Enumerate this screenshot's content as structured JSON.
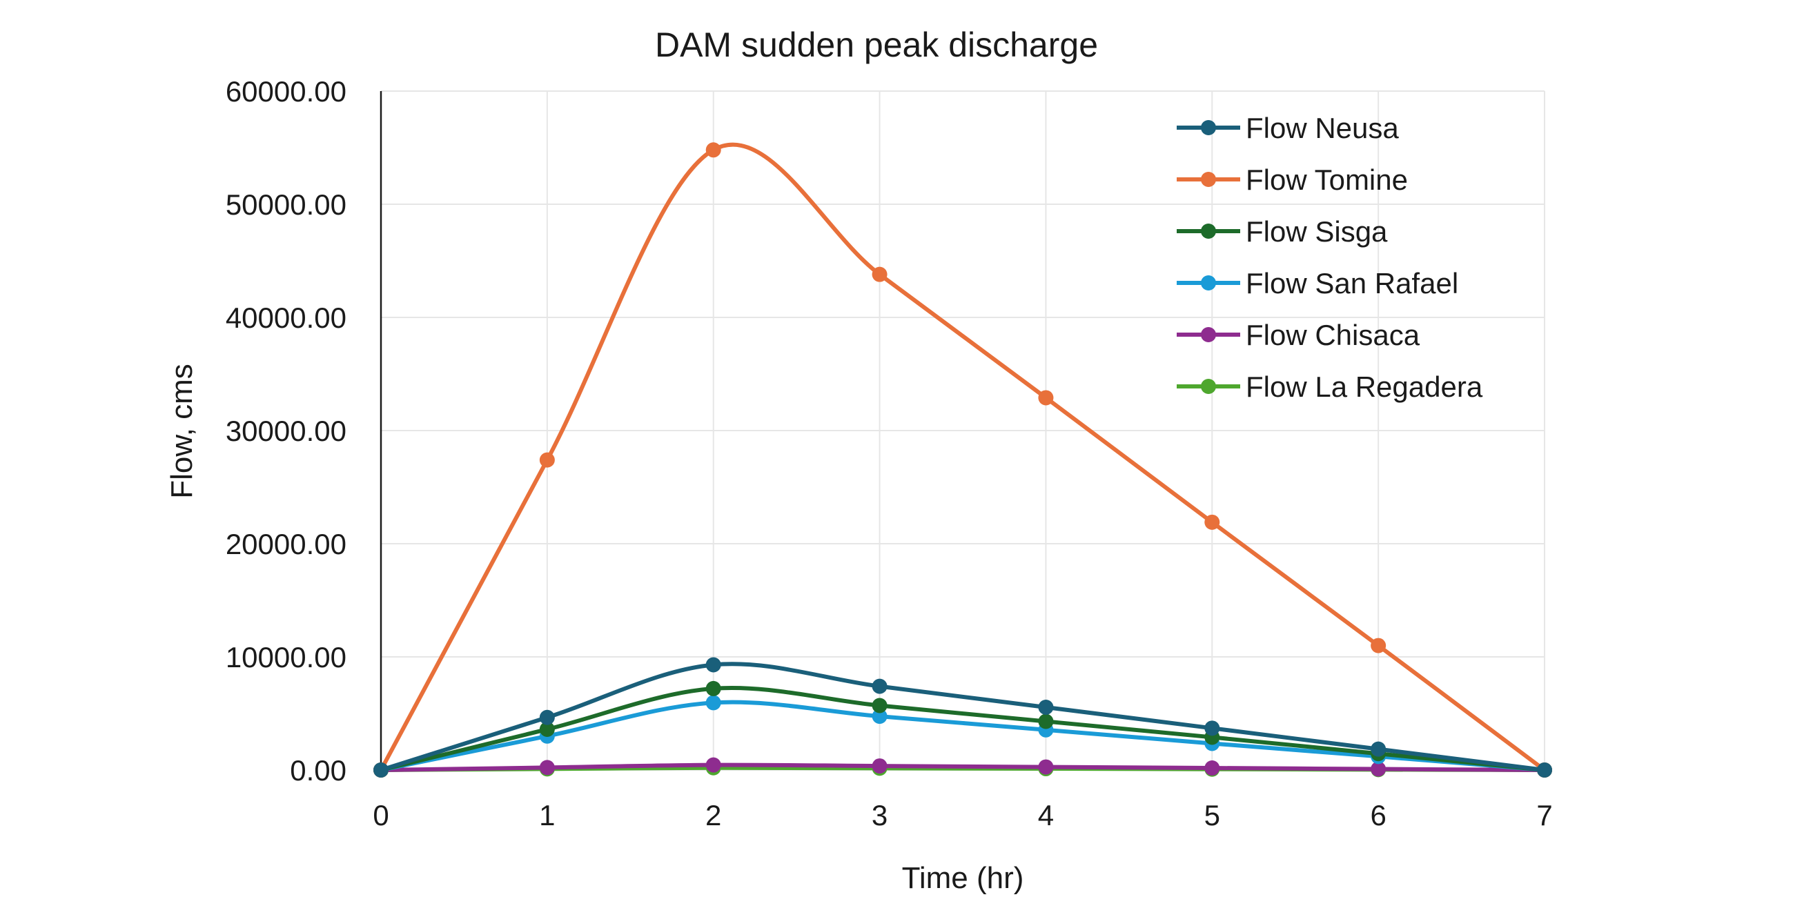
{
  "chart_data": {
    "type": "line",
    "title": "DAM sudden peak discharge",
    "xlabel": "Time (hr)",
    "ylabel": "Flow, cms",
    "x": [
      0,
      1,
      2,
      3,
      4,
      5,
      6,
      7
    ],
    "xlim": [
      0,
      7
    ],
    "ylim": [
      0,
      60000
    ],
    "yticks": [
      0,
      10000,
      20000,
      30000,
      40000,
      50000,
      60000
    ],
    "ytick_labels": [
      "0.00",
      "10000.00",
      "20000.00",
      "30000.00",
      "40000.00",
      "50000.00",
      "60000.00"
    ],
    "xtick_labels": [
      "0",
      "1",
      "2",
      "3",
      "4",
      "5",
      "6",
      "7"
    ],
    "grid": true,
    "smooth": true,
    "legend_position": "top-right",
    "series": [
      {
        "name": "Flow Neusa",
        "color": "#1a5f7a",
        "values": [
          0,
          4650,
          9300,
          7400,
          5550,
          3700,
          1850,
          0
        ]
      },
      {
        "name": "Flow Tomine",
        "color": "#e8703a",
        "values": [
          0,
          27400,
          54800,
          43800,
          32900,
          21900,
          11000,
          0
        ]
      },
      {
        "name": "Flow Sisga",
        "color": "#1d6b2a",
        "values": [
          0,
          3600,
          7200,
          5700,
          4300,
          2900,
          1450,
          0
        ]
      },
      {
        "name": "Flow San Rafael",
        "color": "#1a9bd7",
        "values": [
          0,
          3000,
          5950,
          4750,
          3550,
          2350,
          1200,
          0
        ]
      },
      {
        "name": "Flow Chisaca",
        "color": "#8e2c8f",
        "values": [
          0,
          220,
          450,
          360,
          270,
          180,
          90,
          0
        ]
      },
      {
        "name": "Flow La Regadera",
        "color": "#4ea72e",
        "values": [
          0,
          100,
          200,
          160,
          120,
          80,
          40,
          0
        ]
      }
    ]
  }
}
